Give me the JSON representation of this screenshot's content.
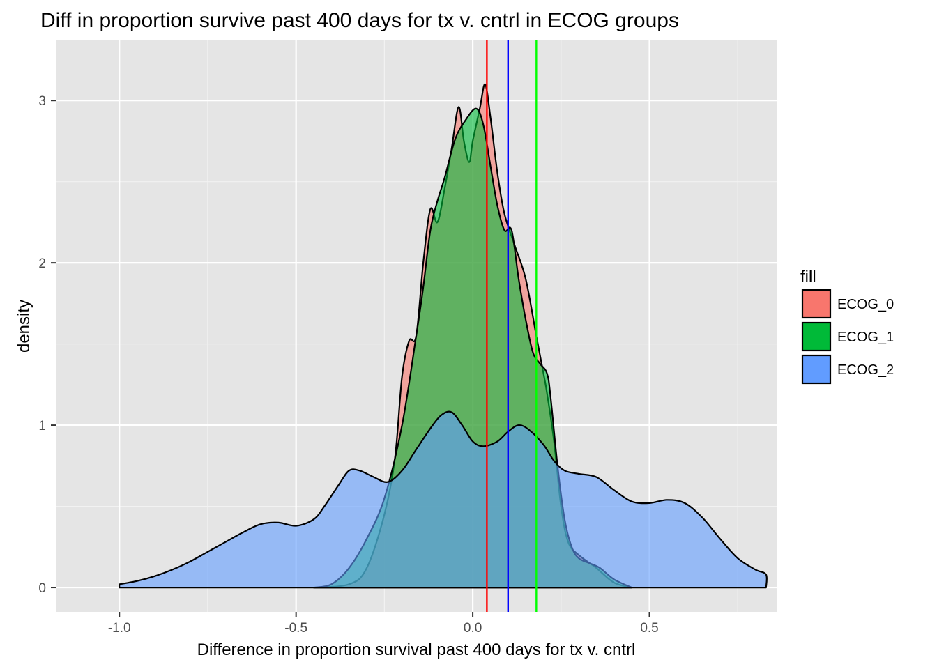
{
  "chart_data": {
    "type": "area",
    "title": "Diff in proportion survive past 400 days for tx v. cntrl in ECOG groups",
    "xlabel": "Difference in proportion survival past 400 days for tx v. cntrl",
    "ylabel": "density",
    "xlim": [
      -1.18,
      0.86
    ],
    "ylim": [
      -0.15,
      3.37
    ],
    "x_ticks": [
      -1.0,
      -0.5,
      0.0,
      0.5
    ],
    "x_tick_labels": [
      "-1.0",
      "-0.5",
      "0.0",
      "0.5"
    ],
    "y_ticks": [
      0,
      1,
      2,
      3
    ],
    "y_tick_labels": [
      "0",
      "1",
      "2",
      "3"
    ],
    "grid": true,
    "legend": {
      "title": "fill",
      "position": "right"
    },
    "series": [
      {
        "name": "ECOG_0",
        "color": "#F8766D",
        "points": [
          [
            -0.45,
            0
          ],
          [
            -0.35,
            0.02
          ],
          [
            -0.3,
            0.12
          ],
          [
            -0.25,
            0.45
          ],
          [
            -0.22,
            0.8
          ],
          [
            -0.2,
            1.3
          ],
          [
            -0.18,
            1.52
          ],
          [
            -0.16,
            1.55
          ],
          [
            -0.14,
            2.0
          ],
          [
            -0.12,
            2.33
          ],
          [
            -0.1,
            2.25
          ],
          [
            -0.08,
            2.45
          ],
          [
            -0.06,
            2.7
          ],
          [
            -0.04,
            2.96
          ],
          [
            -0.025,
            2.75
          ],
          [
            -0.01,
            2.62
          ],
          [
            0.0,
            2.75
          ],
          [
            0.02,
            2.95
          ],
          [
            0.035,
            3.1
          ],
          [
            0.05,
            2.9
          ],
          [
            0.07,
            2.55
          ],
          [
            0.09,
            2.3
          ],
          [
            0.12,
            2.1
          ],
          [
            0.15,
            1.9
          ],
          [
            0.18,
            1.55
          ],
          [
            0.2,
            1.32
          ],
          [
            0.21,
            1.2
          ],
          [
            0.23,
            0.9
          ],
          [
            0.25,
            0.5
          ],
          [
            0.27,
            0.28
          ],
          [
            0.3,
            0.2
          ],
          [
            0.35,
            0.12
          ],
          [
            0.4,
            0.03
          ],
          [
            0.45,
            0
          ]
        ]
      },
      {
        "name": "ECOG_1",
        "color": "#00BA38",
        "points": [
          [
            -0.45,
            0
          ],
          [
            -0.4,
            0.02
          ],
          [
            -0.35,
            0.12
          ],
          [
            -0.3,
            0.3
          ],
          [
            -0.25,
            0.55
          ],
          [
            -0.2,
            1.0
          ],
          [
            -0.16,
            1.55
          ],
          [
            -0.14,
            1.85
          ],
          [
            -0.12,
            2.2
          ],
          [
            -0.1,
            2.38
          ],
          [
            -0.08,
            2.52
          ],
          [
            -0.05,
            2.76
          ],
          [
            -0.02,
            2.88
          ],
          [
            0.01,
            2.95
          ],
          [
            0.03,
            2.85
          ],
          [
            0.05,
            2.6
          ],
          [
            0.07,
            2.35
          ],
          [
            0.09,
            2.2
          ],
          [
            0.11,
            2.2
          ],
          [
            0.13,
            1.9
          ],
          [
            0.15,
            1.65
          ],
          [
            0.17,
            1.45
          ],
          [
            0.19,
            1.38
          ],
          [
            0.21,
            1.32
          ],
          [
            0.22,
            1.18
          ],
          [
            0.24,
            0.75
          ],
          [
            0.26,
            0.42
          ],
          [
            0.28,
            0.25
          ],
          [
            0.3,
            0.18
          ],
          [
            0.33,
            0.15
          ],
          [
            0.36,
            0.12
          ],
          [
            0.4,
            0.05
          ],
          [
            0.45,
            0
          ]
        ]
      },
      {
        "name": "ECOG_2",
        "color": "#619CFF",
        "points": [
          [
            -1.0,
            0.02
          ],
          [
            -0.95,
            0.04
          ],
          [
            -0.9,
            0.07
          ],
          [
            -0.85,
            0.11
          ],
          [
            -0.8,
            0.16
          ],
          [
            -0.75,
            0.22
          ],
          [
            -0.7,
            0.28
          ],
          [
            -0.65,
            0.34
          ],
          [
            -0.6,
            0.39
          ],
          [
            -0.55,
            0.4
          ],
          [
            -0.5,
            0.38
          ],
          [
            -0.45,
            0.42
          ],
          [
            -0.42,
            0.5
          ],
          [
            -0.38,
            0.63
          ],
          [
            -0.35,
            0.72
          ],
          [
            -0.32,
            0.72
          ],
          [
            -0.28,
            0.68
          ],
          [
            -0.24,
            0.65
          ],
          [
            -0.2,
            0.72
          ],
          [
            -0.16,
            0.85
          ],
          [
            -0.12,
            0.98
          ],
          [
            -0.09,
            1.06
          ],
          [
            -0.06,
            1.08
          ],
          [
            -0.03,
            1.0
          ],
          [
            0.0,
            0.9
          ],
          [
            0.03,
            0.87
          ],
          [
            0.07,
            0.9
          ],
          [
            0.1,
            0.96
          ],
          [
            0.13,
            1.0
          ],
          [
            0.16,
            0.97
          ],
          [
            0.2,
            0.88
          ],
          [
            0.23,
            0.78
          ],
          [
            0.26,
            0.72
          ],
          [
            0.3,
            0.7
          ],
          [
            0.35,
            0.68
          ],
          [
            0.4,
            0.6
          ],
          [
            0.45,
            0.53
          ],
          [
            0.5,
            0.52
          ],
          [
            0.55,
            0.54
          ],
          [
            0.6,
            0.52
          ],
          [
            0.65,
            0.43
          ],
          [
            0.7,
            0.3
          ],
          [
            0.75,
            0.18
          ],
          [
            0.8,
            0.11
          ],
          [
            0.83,
            0.08
          ],
          [
            0.83,
            0.0
          ]
        ]
      }
    ],
    "reference_lines": [
      {
        "x": 0.04,
        "color": "#FF0000"
      },
      {
        "x": 0.1,
        "color": "#0000FF"
      },
      {
        "x": 0.18,
        "color": "#00FF00"
      }
    ]
  }
}
